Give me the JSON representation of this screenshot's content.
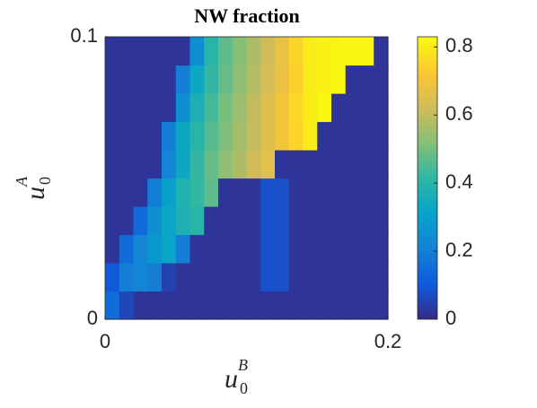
{
  "chart_data": {
    "type": "heatmap",
    "title": "NW fraction",
    "xlabel": {
      "base": "u",
      "sub": "0",
      "sup": "B"
    },
    "ylabel": {
      "base": "u",
      "sub": "0",
      "sup": "A"
    },
    "xlim": [
      0,
      0.2
    ],
    "ylim": [
      0,
      0.1
    ],
    "xticks": [
      0,
      0.2
    ],
    "yticks": [
      0,
      0.1
    ],
    "x": [
      0.005,
      0.015,
      0.025,
      0.035,
      0.045,
      0.055,
      0.065,
      0.075,
      0.085,
      0.095,
      0.105,
      0.115,
      0.125,
      0.135,
      0.145,
      0.155,
      0.165,
      0.175,
      0.185,
      0.195
    ],
    "y": [
      0.005,
      0.015,
      0.025,
      0.035,
      0.045,
      0.055,
      0.065,
      0.075,
      0.085,
      0.095
    ],
    "z": [
      [
        0.15,
        0.06,
        0.02,
        0.02,
        0.02,
        0.02,
        0.02,
        0.02,
        0.02,
        0.02,
        0.02,
        0.02,
        0.02,
        0.02,
        0.02,
        0.02,
        0.02,
        0.02,
        0.02,
        0.02
      ],
      [
        0.1,
        0.2,
        0.22,
        0.2,
        0.05,
        0.02,
        0.02,
        0.02,
        0.02,
        0.02,
        0.02,
        0.08,
        0.08,
        0.02,
        0.02,
        0.02,
        0.02,
        0.02,
        0.02,
        0.02
      ],
      [
        0.02,
        0.15,
        0.22,
        0.28,
        0.32,
        0.2,
        0.02,
        0.02,
        0.02,
        0.02,
        0.02,
        0.08,
        0.08,
        0.02,
        0.02,
        0.02,
        0.02,
        0.02,
        0.02,
        0.02
      ],
      [
        0.02,
        0.02,
        0.15,
        0.25,
        0.32,
        0.37,
        0.4,
        0.02,
        0.02,
        0.02,
        0.02,
        0.08,
        0.08,
        0.02,
        0.02,
        0.02,
        0.02,
        0.02,
        0.02,
        0.02
      ],
      [
        0.02,
        0.02,
        0.02,
        0.2,
        0.3,
        0.38,
        0.42,
        0.47,
        0.02,
        0.02,
        0.02,
        0.08,
        0.08,
        0.02,
        0.02,
        0.02,
        0.02,
        0.02,
        0.02,
        0.02
      ],
      [
        0.02,
        0.02,
        0.02,
        0.02,
        0.22,
        0.33,
        0.42,
        0.48,
        0.53,
        0.57,
        0.62,
        0.66,
        0.02,
        0.02,
        0.02,
        0.02,
        0.02,
        0.02,
        0.02,
        0.02
      ],
      [
        0.02,
        0.02,
        0.02,
        0.02,
        0.2,
        0.33,
        0.4,
        0.46,
        0.51,
        0.56,
        0.6,
        0.65,
        0.7,
        0.75,
        0.8,
        0.02,
        0.02,
        0.02,
        0.02,
        0.02
      ],
      [
        0.02,
        0.02,
        0.02,
        0.02,
        0.02,
        0.25,
        0.37,
        0.44,
        0.5,
        0.55,
        0.6,
        0.65,
        0.7,
        0.76,
        0.8,
        0.82,
        0.02,
        0.02,
        0.02,
        0.02
      ],
      [
        0.02,
        0.02,
        0.02,
        0.02,
        0.02,
        0.2,
        0.33,
        0.42,
        0.48,
        0.53,
        0.58,
        0.63,
        0.68,
        0.74,
        0.8,
        0.81,
        0.82,
        0.02,
        0.02,
        0.02
      ],
      [
        0.02,
        0.02,
        0.02,
        0.02,
        0.02,
        0.02,
        0.25,
        0.4,
        0.47,
        0.52,
        0.57,
        0.62,
        0.68,
        0.75,
        0.8,
        0.81,
        0.82,
        0.82,
        0.82,
        0.02
      ]
    ],
    "clim": [
      0,
      0.83
    ],
    "cticks": [
      0,
      0.2,
      0.4,
      0.6,
      0.8
    ],
    "colormap": [
      "#352a87",
      "#0f5cdd",
      "#1481d6",
      "#06a4ca",
      "#2eb7a4",
      "#87bf77",
      "#d1bb59",
      "#fec832",
      "#f9fb0e"
    ]
  }
}
